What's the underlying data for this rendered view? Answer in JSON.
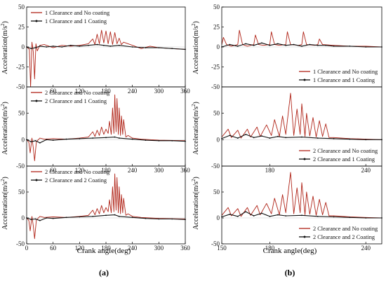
{
  "figure": {
    "panel_labels": [
      "(a)",
      "(b)"
    ],
    "xlabel": "Crank angle(deg)",
    "ylabel_main": "Acceleration(m/s",
    "ylabel_sup": "2",
    "ylabel_close": ")"
  },
  "colors": {
    "no_coating": "#b02418",
    "coating": "#111111",
    "axis": "#000000"
  },
  "chart_data": [
    {
      "id": "a1",
      "type": "line",
      "xlim": [
        0,
        360
      ],
      "ylim": [
        -50,
        50
      ],
      "xticks": [
        60,
        120,
        180,
        240,
        300,
        360
      ],
      "yticks": [
        50,
        25,
        0,
        -25,
        -50
      ],
      "legend_position": "top-left",
      "series": [
        {
          "name": "1 Clearance and No coating",
          "key": "no_coating",
          "x": [
            0,
            6,
            9,
            12,
            15,
            18,
            21,
            24,
            30,
            40,
            60,
            80,
            100,
            120,
            140,
            150,
            155,
            160,
            165,
            170,
            175,
            180,
            185,
            190,
            195,
            200,
            205,
            210,
            215,
            220,
            240,
            260,
            280,
            300,
            330,
            360
          ],
          "y": [
            0,
            -3,
            -50,
            6,
            -6,
            -40,
            4,
            -5,
            2,
            3,
            -1,
            2,
            1,
            2,
            4,
            10,
            3,
            16,
            4,
            21,
            5,
            20,
            4,
            19,
            3,
            18,
            4,
            11,
            3,
            6,
            2,
            -2,
            1,
            -1,
            -2,
            -3
          ]
        },
        {
          "name": "1 Clearance and 1 Coating",
          "key": "coating",
          "x": [
            0,
            10,
            20,
            30,
            45,
            60,
            80,
            100,
            120,
            140,
            160,
            175,
            190,
            210,
            240,
            270,
            300,
            330,
            360
          ],
          "y": [
            0,
            -2,
            -1,
            1,
            0,
            1,
            0,
            2,
            1,
            2,
            3,
            2,
            1,
            2,
            0,
            -1,
            -1,
            -2,
            -3
          ]
        }
      ]
    },
    {
      "id": "b1",
      "type": "line",
      "xlim": [
        150,
        250
      ],
      "ylim": [
        -50,
        50
      ],
      "xticks": [],
      "yticks": [
        50,
        25,
        0,
        -25,
        -50
      ],
      "legend_position": "bottom-right",
      "series": [
        {
          "name": "1 Clearance and No coating",
          "key": "no_coating",
          "x": [
            150,
            151,
            153,
            156,
            160,
            161,
            163,
            166,
            170,
            171,
            173,
            176,
            180,
            181,
            183,
            186,
            190,
            191,
            193,
            198,
            200,
            201,
            203,
            208,
            210,
            211,
            213,
            220,
            230,
            240,
            250
          ],
          "y": [
            3,
            12,
            3,
            1,
            3,
            21,
            3,
            1,
            3,
            15,
            3,
            2,
            3,
            19,
            3,
            2,
            3,
            19,
            3,
            2,
            3,
            19,
            3,
            2,
            3,
            10,
            3,
            2,
            1,
            1,
            0
          ]
        },
        {
          "name": "1 Clearance and 1 Coating",
          "key": "coating",
          "x": [
            150,
            155,
            160,
            165,
            170,
            175,
            180,
            185,
            190,
            195,
            200,
            205,
            210,
            215,
            220,
            230,
            240,
            250
          ],
          "y": [
            0,
            3,
            1,
            4,
            2,
            5,
            2,
            4,
            2,
            3,
            1,
            3,
            2,
            2,
            1,
            1,
            0,
            0
          ]
        }
      ]
    },
    {
      "id": "a2",
      "type": "line",
      "xlim": [
        0,
        360
      ],
      "ylim": [
        -50,
        100
      ],
      "xticks": [
        60,
        120,
        180,
        240,
        300,
        360
      ],
      "yticks": [
        50,
        0,
        -50
      ],
      "legend_position": "top-left",
      "series": [
        {
          "name": "2 Clearance and No coating",
          "key": "no_coating",
          "x": [
            0,
            5,
            8,
            12,
            15,
            18,
            22,
            30,
            40,
            60,
            90,
            120,
            140,
            150,
            155,
            160,
            165,
            170,
            175,
            180,
            185,
            188,
            192,
            195,
            198,
            200,
            203,
            205,
            208,
            210,
            213,
            215,
            218,
            220,
            225,
            230,
            240,
            260,
            300,
            360
          ],
          "y": [
            0,
            -5,
            -25,
            3,
            -15,
            -40,
            -4,
            3,
            1,
            2,
            1,
            3,
            5,
            15,
            6,
            18,
            8,
            24,
            10,
            20,
            12,
            35,
            10,
            60,
            12,
            85,
            15,
            78,
            10,
            60,
            8,
            45,
            10,
            38,
            5,
            8,
            3,
            1,
            -1,
            -2
          ]
        },
        {
          "name": "2 Clearance and 1 Coating",
          "key": "coating",
          "x": [
            0,
            10,
            20,
            30,
            45,
            60,
            90,
            120,
            150,
            180,
            200,
            210,
            240,
            270,
            300,
            330,
            360
          ],
          "y": [
            0,
            -4,
            -2,
            -6,
            0,
            -1,
            1,
            2,
            3,
            4,
            5,
            3,
            1,
            -1,
            -2,
            -2,
            -3
          ]
        }
      ]
    },
    {
      "id": "b2",
      "type": "line",
      "xlim": [
        150,
        250
      ],
      "ylim": [
        -50,
        100
      ],
      "xticks": [
        180,
        240
      ],
      "yticks": [
        50,
        0,
        -50
      ],
      "legend_position": "bottom-right",
      "series": [
        {
          "name": "2 Clearance and No coating",
          "key": "no_coating",
          "x": [
            150,
            154,
            156,
            160,
            162,
            166,
            168,
            172,
            174,
            178,
            181,
            183,
            186,
            188,
            190,
            193,
            195,
            197,
            199,
            200,
            202,
            203,
            205,
            207,
            209,
            211,
            213,
            215,
            217,
            220,
            230,
            240,
            250
          ],
          "y": [
            5,
            20,
            4,
            18,
            3,
            20,
            5,
            24,
            6,
            28,
            8,
            38,
            6,
            45,
            10,
            88,
            8,
            58,
            10,
            68,
            6,
            50,
            7,
            42,
            5,
            36,
            6,
            30,
            4,
            4,
            2,
            1,
            0
          ]
        },
        {
          "name": "2 Clearance and 1 Coating",
          "key": "coating",
          "x": [
            150,
            155,
            160,
            165,
            170,
            175,
            180,
            185,
            190,
            200,
            210,
            220,
            230,
            240,
            250
          ],
          "y": [
            2,
            8,
            3,
            10,
            4,
            7,
            3,
            6,
            4,
            5,
            3,
            2,
            1,
            0,
            0
          ]
        }
      ]
    },
    {
      "id": "a3",
      "type": "line",
      "xlim": [
        0,
        360
      ],
      "ylim": [
        -50,
        100
      ],
      "xticks": [
        0,
        60,
        120,
        180,
        240,
        300,
        360
      ],
      "yticks": [
        50,
        0,
        -50
      ],
      "legend_position": "top-left",
      "series": [
        {
          "name": "2 Clearance and No coating",
          "key": "no_coating",
          "x": [
            0,
            5,
            8,
            12,
            15,
            18,
            22,
            30,
            40,
            60,
            90,
            120,
            140,
            150,
            155,
            160,
            165,
            170,
            175,
            180,
            185,
            188,
            192,
            195,
            198,
            200,
            203,
            205,
            208,
            210,
            213,
            215,
            218,
            220,
            225,
            230,
            240,
            260,
            300,
            360
          ],
          "y": [
            0,
            -5,
            -25,
            3,
            -15,
            -40,
            -4,
            3,
            1,
            2,
            1,
            3,
            5,
            15,
            6,
            18,
            8,
            24,
            10,
            20,
            12,
            35,
            10,
            60,
            12,
            85,
            15,
            78,
            10,
            60,
            8,
            45,
            10,
            38,
            5,
            8,
            3,
            1,
            -1,
            -2
          ]
        },
        {
          "name": "2 Clearance and 2 Coating",
          "key": "coating",
          "x": [
            0,
            10,
            20,
            30,
            45,
            60,
            90,
            120,
            150,
            180,
            200,
            210,
            240,
            270,
            300,
            330,
            360
          ],
          "y": [
            0,
            -3,
            -2,
            -5,
            0,
            -1,
            1,
            2,
            3,
            5,
            6,
            3,
            1,
            -1,
            -2,
            -2,
            -3
          ]
        }
      ]
    },
    {
      "id": "b3",
      "type": "line",
      "xlim": [
        150,
        250
      ],
      "ylim": [
        -50,
        100
      ],
      "xticks": [
        150,
        180,
        240
      ],
      "yticks": [
        50,
        0,
        -50
      ],
      "legend_position": "bottom-right",
      "series": [
        {
          "name": "2 Clearance and No coating",
          "key": "no_coating",
          "x": [
            150,
            154,
            156,
            160,
            162,
            166,
            168,
            172,
            174,
            178,
            181,
            183,
            186,
            188,
            190,
            193,
            195,
            197,
            199,
            200,
            202,
            203,
            205,
            207,
            209,
            211,
            213,
            215,
            217,
            220,
            230,
            240,
            250
          ],
          "y": [
            5,
            20,
            4,
            18,
            3,
            20,
            5,
            24,
            6,
            28,
            8,
            38,
            6,
            45,
            10,
            88,
            8,
            58,
            10,
            68,
            6,
            50,
            7,
            42,
            5,
            36,
            6,
            30,
            4,
            4,
            2,
            1,
            0
          ]
        },
        {
          "name": "2 Clearance and 2 Coating",
          "key": "coating",
          "x": [
            150,
            155,
            160,
            165,
            170,
            175,
            180,
            185,
            190,
            200,
            210,
            220,
            230,
            240,
            250
          ],
          "y": [
            2,
            7,
            3,
            12,
            4,
            9,
            3,
            6,
            4,
            5,
            3,
            2,
            1,
            0,
            0
          ]
        }
      ]
    }
  ]
}
